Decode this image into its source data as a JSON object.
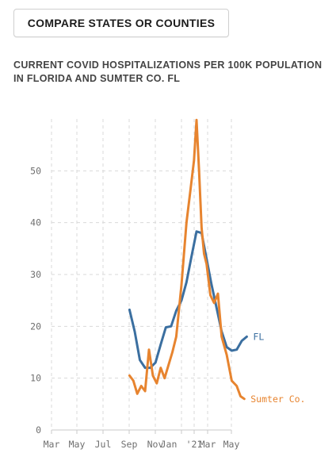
{
  "header": {
    "compare_button_label": "COMPARE STATES OR COUNTIES"
  },
  "chart_data": {
    "type": "line",
    "title_line1": "CURRENT COVID HOSPITALIZATIONS PER 100K POPULATION",
    "title_line2": "IN FLORIDA AND SUMTER CO. FL",
    "xlabel": "",
    "ylabel": "",
    "x_unit": "months since Mar 2020",
    "xlim": [
      0,
      14
    ],
    "ylim": [
      0,
      60
    ],
    "grid": true,
    "x_ticks": [
      {
        "x": 0,
        "label": "Mar"
      },
      {
        "x": 1,
        "label": "May"
      },
      {
        "x": 2,
        "label": "Jul"
      },
      {
        "x": 3,
        "label": "Sep"
      },
      {
        "x": 4,
        "label": "Nov"
      },
      {
        "x": 5,
        "label": "Jan"
      },
      {
        "x": 6,
        "label": "'21"
      },
      {
        "x": 6.4,
        "label": "Mar"
      },
      {
        "x": 7.2,
        "label": "May"
      }
    ],
    "y_ticks": [
      0,
      10,
      20,
      30,
      40,
      50
    ],
    "x_tick_label_values": [
      "Mar",
      "May",
      "Jul",
      "Sep",
      "Nov",
      "Jan",
      "'21",
      "Mar",
      "May"
    ],
    "y_tick_label_values": [
      "0",
      "10",
      "20",
      "30",
      "40",
      "50"
    ],
    "series": [
      {
        "name": "FL",
        "color": "#3b6fa0",
        "x": [
          3.0,
          3.2,
          3.4,
          3.6,
          3.8,
          4.0,
          4.2,
          4.4,
          4.6,
          4.8,
          5.0,
          5.2,
          5.4,
          5.6,
          5.8,
          6.0,
          6.2,
          6.4,
          6.6,
          6.8,
          7.0,
          7.2,
          7.4,
          7.6
        ],
        "y": [
          23.2,
          19.0,
          13.5,
          12.0,
          12.0,
          13.0,
          16.5,
          19.8,
          20.0,
          23.0,
          25.0,
          28.5,
          33.5,
          38.3,
          38.0,
          33.0,
          28.0,
          23.5,
          19.0,
          16.0,
          15.3,
          15.5,
          17.2,
          18.0
        ]
      },
      {
        "name": "Sumter Co.",
        "color": "#e7842f",
        "x": [
          3.0,
          3.15,
          3.3,
          3.45,
          3.6,
          3.75,
          3.9,
          4.05,
          4.2,
          4.35,
          4.5,
          4.65,
          4.8,
          5.0,
          5.2,
          5.35,
          5.5,
          5.6,
          5.7,
          5.8,
          5.9,
          6.0,
          6.15,
          6.3,
          6.45,
          6.6,
          6.8,
          7.0,
          7.2,
          7.35,
          7.5
        ],
        "y": [
          10.5,
          9.5,
          7.0,
          8.5,
          7.5,
          15.5,
          10.5,
          9.0,
          12.0,
          10.0,
          12.5,
          15.0,
          18.0,
          28.0,
          40.0,
          46.0,
          52.0,
          59.8,
          50.0,
          39.0,
          34.0,
          32.0,
          26.0,
          24.5,
          26.3,
          18.0,
          14.5,
          9.5,
          8.5,
          6.5,
          6.0
        ]
      }
    ],
    "annotations": [
      {
        "text": "FL",
        "series": "FL"
      },
      {
        "text": "Sumter Co.",
        "series": "Sumter Co."
      }
    ],
    "colors": {
      "grid": "#d9d9d9",
      "axis": "#c8c8c8",
      "tick_text": "#6f6f6f"
    }
  }
}
